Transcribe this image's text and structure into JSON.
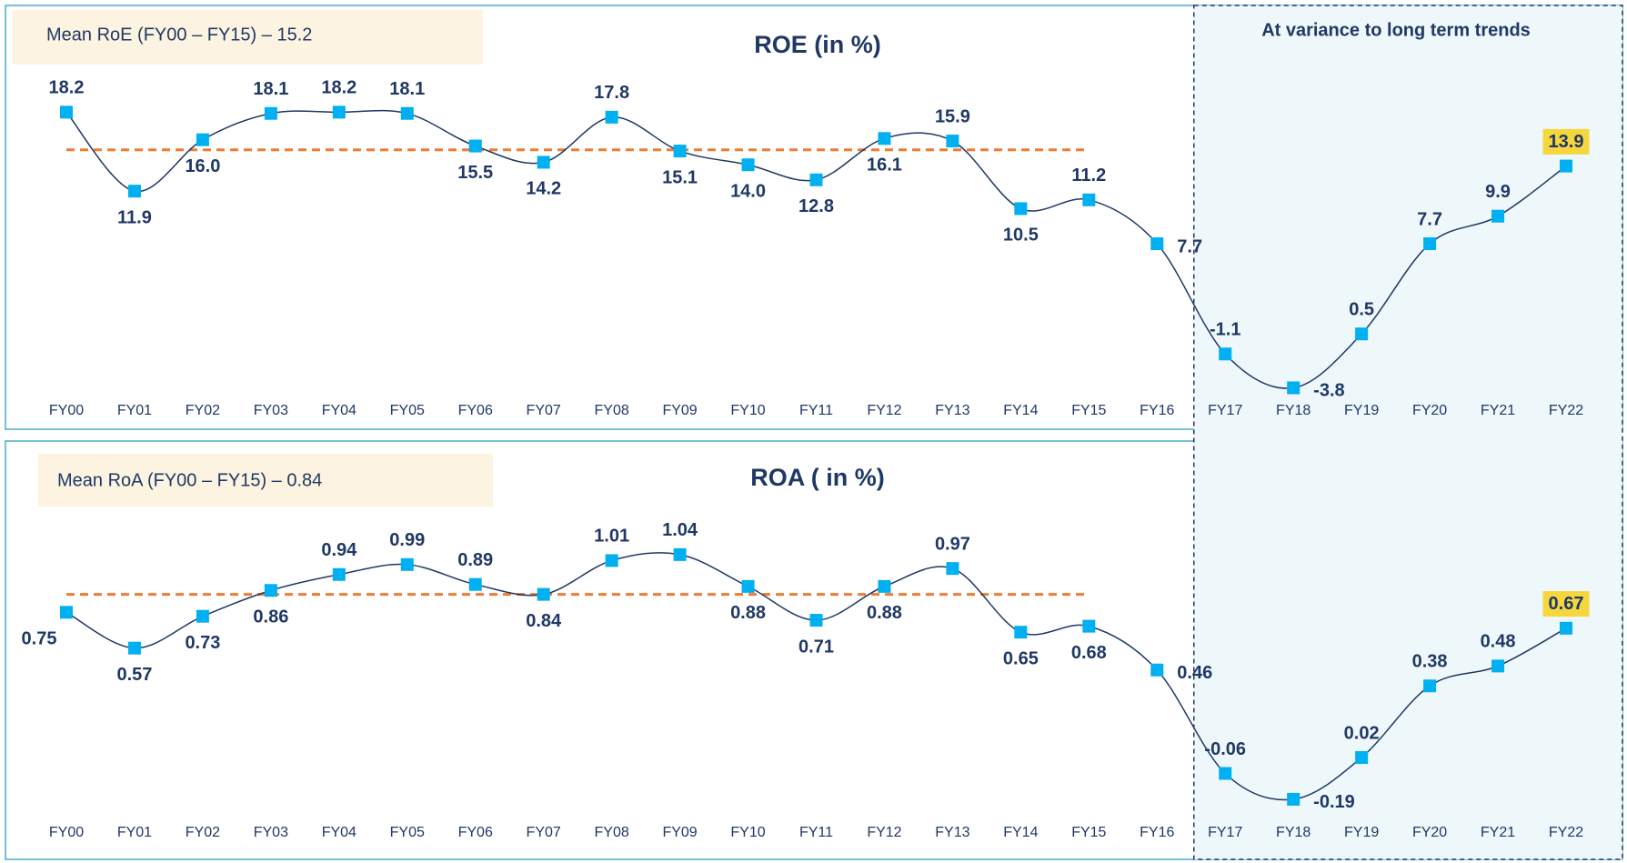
{
  "variance_note": {
    "text": "At variance to long term trends",
    "from": "FY17",
    "to": "FY22"
  },
  "chart_data": [
    {
      "type": "line",
      "title": "ROE (in %)",
      "annotation": "Mean RoE (FY00 – FY15) – 15.2",
      "categories": [
        "FY00",
        "FY01",
        "FY02",
        "FY03",
        "FY04",
        "FY05",
        "FY06",
        "FY07",
        "FY08",
        "FY09",
        "FY10",
        "FY11",
        "FY12",
        "FY13",
        "FY14",
        "FY15",
        "FY16",
        "FY17",
        "FY18",
        "FY19",
        "FY20",
        "FY21",
        "FY22"
      ],
      "values": [
        18.2,
        11.9,
        16.0,
        18.1,
        18.2,
        18.1,
        15.5,
        14.2,
        17.8,
        15.1,
        14.0,
        12.8,
        16.1,
        15.9,
        10.5,
        11.2,
        7.7,
        -1.1,
        -3.8,
        0.5,
        7.7,
        9.9,
        13.9
      ],
      "value_labels": [
        "18.2",
        "11.9",
        "16.0",
        "18.1",
        "18.2",
        "18.1",
        "15.5",
        "14.2",
        "17.8",
        "15.1",
        "14.0",
        "12.8",
        "16.1",
        "15.9",
        "10.5",
        "11.2",
        "7.7",
        "-1.1",
        "-3.8",
        "0.5",
        "7.7",
        "9.9",
        "13.9"
      ],
      "color": "#1f3864",
      "marker_color": "#00b0f0",
      "mean_line": {
        "value": 15.2,
        "from": "FY00",
        "to": "FY15",
        "color": "#ed7d31"
      },
      "highlight": "FY22",
      "highlight_color": "#f5d63d",
      "ylim": [
        -5,
        22
      ]
    },
    {
      "type": "line",
      "title": "ROA ( in %)",
      "annotation": "Mean RoA (FY00 – FY15) – 0.84",
      "categories": [
        "FY00",
        "FY01",
        "FY02",
        "FY03",
        "FY04",
        "FY05",
        "FY06",
        "FY07",
        "FY08",
        "FY09",
        "FY10",
        "FY11",
        "FY12",
        "FY13",
        "FY14",
        "FY15",
        "FY16",
        "FY17",
        "FY18",
        "FY19",
        "FY20",
        "FY21",
        "FY22"
      ],
      "values": [
        0.75,
        0.57,
        0.73,
        0.86,
        0.94,
        0.99,
        0.89,
        0.84,
        1.01,
        1.04,
        0.88,
        0.71,
        0.88,
        0.97,
        0.65,
        0.68,
        0.46,
        -0.06,
        -0.19,
        0.02,
        0.38,
        0.48,
        0.67
      ],
      "color": "#1f3864",
      "marker_color": "#00b0f0",
      "mean_line": {
        "value": 0.84,
        "from": "FY00",
        "to": "FY15",
        "color": "#ed7d31"
      },
      "highlight": "FY22",
      "highlight_color": "#f5d63d",
      "ylim": [
        -0.3,
        1.3
      ]
    }
  ]
}
